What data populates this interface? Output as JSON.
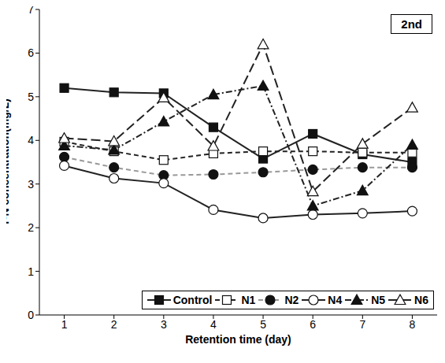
{
  "chart_data": {
    "type": "line",
    "title": "2nd",
    "x_label": "Retention time (day)",
    "y_label": "T-N concentration(mg/L)",
    "x": [
      1,
      2,
      3,
      4,
      5,
      6,
      7,
      8
    ],
    "xlim": [
      0.5,
      8.5
    ],
    "xticks": [
      1,
      2,
      3,
      4,
      5,
      6,
      7,
      8
    ],
    "ylim": [
      0,
      7
    ],
    "yticks": [
      0,
      1,
      2,
      3,
      4,
      5,
      6,
      7
    ],
    "grid": false,
    "legend": "lower right",
    "series": [
      {
        "name": "Control",
        "color": "#222222",
        "marker": "filled-square",
        "line_style": "solid",
        "values": [
          5.2,
          5.1,
          5.08,
          4.3,
          3.58,
          4.15,
          3.68,
          3.5
        ]
      },
      {
        "name": "N1",
        "color": "#222222",
        "marker": "open-square",
        "line_style": "dashed",
        "values": [
          3.97,
          3.75,
          3.55,
          3.7,
          3.75,
          3.75,
          3.72,
          3.72
        ]
      },
      {
        "name": "N2",
        "color": "#999999",
        "marker": "filled-circle",
        "line_style": "dashed",
        "values": [
          3.62,
          3.38,
          3.2,
          3.22,
          3.27,
          3.33,
          3.38,
          3.38
        ]
      },
      {
        "name": "N4",
        "color": "#222222",
        "marker": "open-circle",
        "line_style": "solid",
        "values": [
          3.42,
          3.13,
          3.02,
          2.41,
          2.22,
          2.3,
          2.33,
          2.38
        ]
      },
      {
        "name": "N5",
        "color": "#222222",
        "marker": "filled-triangle",
        "line_style": "dash-dot",
        "values": [
          3.88,
          3.78,
          4.43,
          5.05,
          5.25,
          2.5,
          2.85,
          3.9
        ]
      },
      {
        "name": "N6",
        "color": "#222222",
        "marker": "open-triangle",
        "line_style": "long-dash",
        "values": [
          4.05,
          3.98,
          4.98,
          3.87,
          6.2,
          2.83,
          3.92,
          4.75
        ]
      }
    ]
  }
}
